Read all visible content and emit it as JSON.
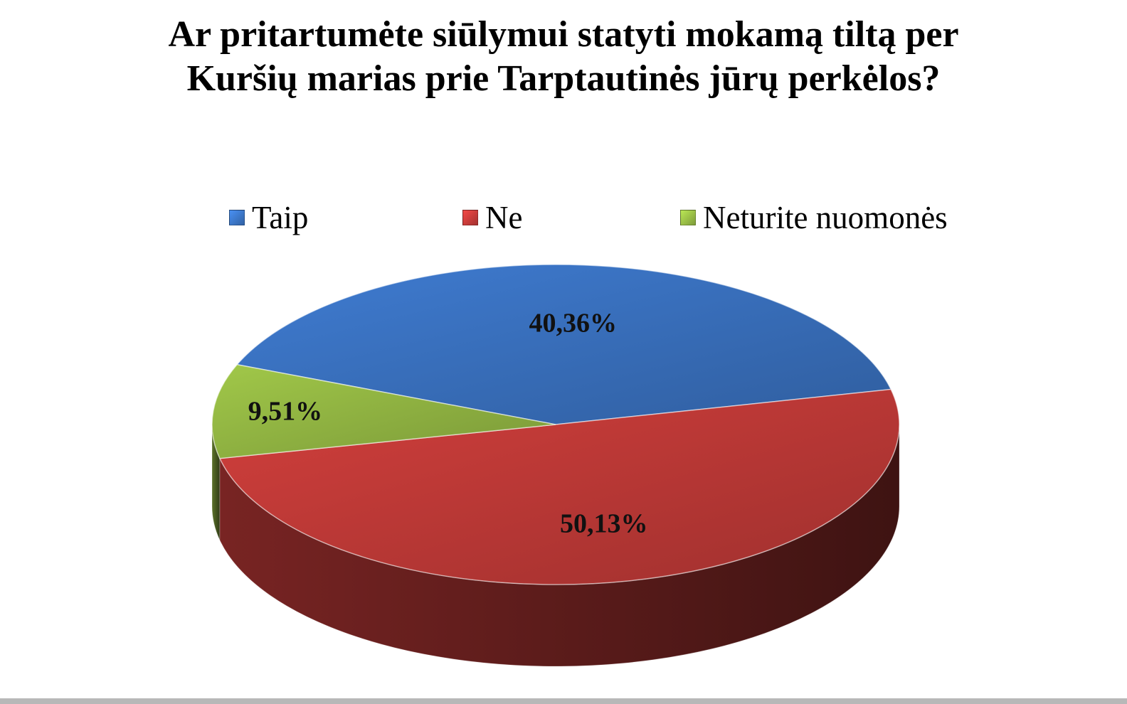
{
  "chart_data": {
    "type": "pie",
    "title_lines": [
      "Ar pritartumėte siūlymui statyti mokamą tiltą per",
      "Kuršių marias prie Tarptautinės jūrų perkėlos?"
    ],
    "categories": [
      "Taip",
      "Ne",
      "Neturite nuomonės"
    ],
    "values": [
      40.36,
      50.13,
      9.51
    ],
    "labels": [
      "40,36%",
      "50,13%",
      "9,51%"
    ],
    "colors": [
      "#3a73c2",
      "#c23a38",
      "#95b944"
    ],
    "legend_position": "top",
    "style": "3d"
  }
}
